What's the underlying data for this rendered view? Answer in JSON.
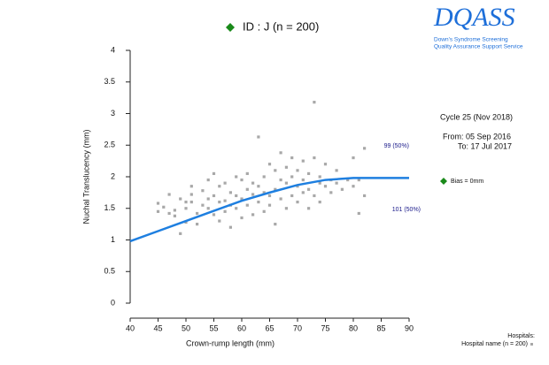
{
  "logo": {
    "title": "DQASS",
    "line1": "Down's Syndrome Screening",
    "line2": "Quality Assurance Support Service"
  },
  "chart_data": {
    "type": "scatter",
    "title": "ID : J (n = 200)",
    "x_label": "Crown-rump length (mm)",
    "y_label": "Nuchal Translucency (mm)",
    "xlim": [
      40,
      90
    ],
    "ylim": [
      0,
      4
    ],
    "xticks": [
      40,
      45,
      50,
      55,
      60,
      65,
      70,
      75,
      80,
      85,
      90
    ],
    "yticks": [
      0,
      0.5,
      1,
      1.5,
      2,
      2.5,
      3,
      3.5,
      4
    ],
    "series": [
      {
        "name": "Hospital name (n = 200)",
        "type": "scatter",
        "color": "#a8a8a8",
        "x": [
          45,
          45,
          46,
          47,
          47,
          48,
          48,
          49,
          49,
          50,
          50,
          50,
          51,
          51,
          51,
          52,
          52,
          53,
          53,
          54,
          54,
          54,
          55,
          55,
          55,
          56,
          56,
          56,
          57,
          57,
          57,
          58,
          58,
          58,
          59,
          59,
          59,
          60,
          60,
          60,
          61,
          61,
          61,
          62,
          62,
          62,
          63,
          63,
          63,
          64,
          64,
          64,
          65,
          65,
          65,
          66,
          66,
          66,
          67,
          67,
          67,
          68,
          68,
          68,
          69,
          69,
          69,
          70,
          70,
          70,
          71,
          71,
          71,
          72,
          72,
          72,
          73,
          73,
          73,
          74,
          74,
          74,
          75,
          75,
          76,
          76,
          77,
          77,
          78,
          79,
          80,
          80,
          81,
          81,
          82,
          82
        ],
        "values": [
          1.58,
          1.45,
          1.52,
          1.72,
          1.42,
          1.38,
          1.47,
          1.1,
          1.65,
          1.6,
          1.5,
          1.28,
          1.85,
          1.72,
          1.6,
          1.42,
          1.25,
          1.55,
          1.78,
          1.65,
          1.95,
          1.5,
          2.05,
          1.7,
          1.4,
          1.3,
          1.6,
          1.85,
          1.9,
          1.62,
          1.45,
          1.55,
          1.2,
          1.75,
          1.7,
          2.0,
          1.5,
          1.65,
          1.95,
          1.35,
          1.8,
          1.55,
          2.05,
          1.72,
          1.4,
          1.9,
          2.63,
          1.6,
          1.85,
          1.75,
          2.0,
          1.45,
          1.7,
          2.2,
          1.55,
          2.1,
          1.25,
          1.8,
          2.38,
          1.65,
          1.95,
          1.9,
          2.15,
          1.5,
          1.7,
          2.0,
          2.3,
          1.85,
          1.6,
          2.1,
          2.25,
          1.75,
          1.95,
          2.05,
          1.5,
          1.8,
          3.18,
          2.3,
          1.7,
          2.0,
          1.9,
          1.6,
          2.2,
          1.85,
          1.95,
          1.75,
          2.1,
          1.9,
          1.8,
          1.95,
          2.3,
          1.85,
          1.42,
          1.95,
          2.45,
          1.7
        ]
      },
      {
        "type": "line",
        "color": "#1e7fe0",
        "x": [
          40,
          45,
          50,
          55,
          60,
          65,
          70,
          75,
          80,
          85,
          90
        ],
        "values": [
          0.98,
          1.14,
          1.3,
          1.46,
          1.62,
          1.75,
          1.87,
          1.95,
          1.98,
          1.98,
          1.98
        ]
      }
    ],
    "annotations": {
      "above": "99 (50%)",
      "below": "101 (50%)",
      "cycle": "Cycle 25 (Nov 2018)",
      "from": "From: 05 Sep 2016",
      "to": "To: 17 Jul 2017",
      "bias": "Bias = 0mm",
      "hospitals": "Hospitals:"
    }
  }
}
